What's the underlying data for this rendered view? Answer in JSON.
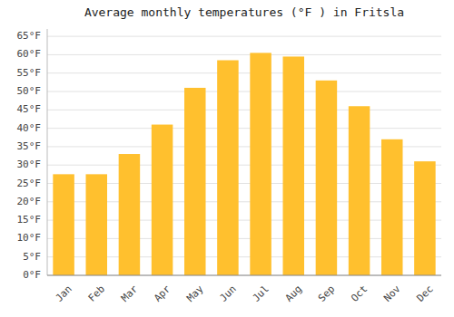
{
  "chart_data": {
    "type": "bar",
    "title": "Average monthly temperatures (°F ) in Fritsla",
    "categories": [
      "Jan",
      "Feb",
      "Mar",
      "Apr",
      "May",
      "Jun",
      "Jul",
      "Aug",
      "Sep",
      "Oct",
      "Nov",
      "Dec"
    ],
    "values": [
      27.5,
      27.5,
      33,
      41,
      51,
      58.5,
      60.5,
      59.5,
      53,
      46,
      37,
      31
    ],
    "color": "#FFC02E",
    "ylim": [
      0,
      67
    ],
    "yticks": [
      {
        "value": 0,
        "label": "0°F"
      },
      {
        "value": 5,
        "label": "5°F"
      },
      {
        "value": 10,
        "label": "10°F"
      },
      {
        "value": 15,
        "label": "15°F"
      },
      {
        "value": 20,
        "label": "20°F"
      },
      {
        "value": 25,
        "label": "25°F"
      },
      {
        "value": 30,
        "label": "30°F"
      },
      {
        "value": 35,
        "label": "35°F"
      },
      {
        "value": 40,
        "label": "40°F"
      },
      {
        "value": 45,
        "label": "45°F"
      },
      {
        "value": 50,
        "label": "50°F"
      },
      {
        "value": 55,
        "label": "55°F"
      },
      {
        "value": 60,
        "label": "60°F"
      },
      {
        "value": 65,
        "label": "65°F"
      }
    ],
    "grid": true
  }
}
